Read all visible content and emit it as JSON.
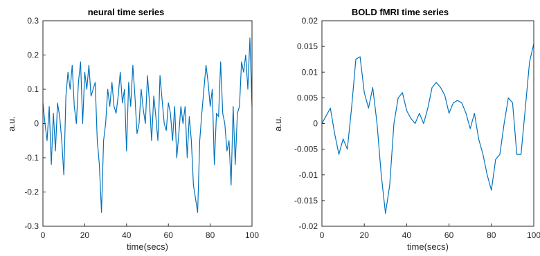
{
  "chart_data": [
    {
      "type": "line",
      "title": "neural time series",
      "xlabel": "time(secs)",
      "ylabel": "a.u.",
      "xlim": [
        0,
        100
      ],
      "ylim": [
        -0.3,
        0.3
      ],
      "xticks": [
        0,
        20,
        40,
        60,
        80,
        100
      ],
      "xtick_labels": [
        "0",
        "20",
        "40",
        "60",
        "80",
        "100"
      ],
      "yticks": [
        -0.3,
        -0.2,
        -0.1,
        0,
        0.1,
        0.2,
        0.3
      ],
      "ytick_labels": [
        "-0.3",
        "-0.2",
        "-0.1",
        "0",
        "0.1",
        "0.2",
        "0.3"
      ],
      "grid": false,
      "color": "#0072BD",
      "series": [
        {
          "x": [
            0,
            1,
            2,
            3,
            4,
            5,
            6,
            7,
            8,
            9,
            10,
            11,
            12,
            13,
            14,
            15,
            16,
            17,
            18,
            19,
            20,
            21,
            22,
            23,
            24,
            25,
            26,
            27,
            28,
            29,
            30,
            31,
            32,
            33,
            34,
            35,
            36,
            37,
            38,
            39,
            40,
            41,
            42,
            43,
            44,
            45,
            46,
            47,
            48,
            49,
            50,
            51,
            52,
            53,
            54,
            55,
            56,
            57,
            58,
            59,
            60,
            61,
            62,
            63,
            64,
            65,
            66,
            67,
            68,
            69,
            70,
            71,
            72,
            73,
            74,
            75,
            76,
            77,
            78,
            79,
            80,
            81,
            82,
            83,
            84,
            85,
            86,
            87,
            88,
            89,
            90,
            91,
            92,
            93,
            94,
            95,
            96,
            97,
            98,
            99,
            100
          ],
          "values": [
            0.06,
            0.0,
            -0.05,
            0.05,
            -0.12,
            0.03,
            -0.08,
            0.06,
            0.02,
            -0.05,
            -0.15,
            0.08,
            0.15,
            0.1,
            0.17,
            0.05,
            0.0,
            0.12,
            0.18,
            0.0,
            0.15,
            0.1,
            0.17,
            0.08,
            0.1,
            0.12,
            -0.05,
            -0.12,
            -0.26,
            -0.05,
            0.0,
            0.1,
            0.05,
            0.12,
            0.05,
            0.03,
            0.08,
            0.15,
            0.06,
            0.1,
            -0.08,
            0.12,
            0.05,
            0.17,
            0.08,
            -0.03,
            0.0,
            0.1,
            0.04,
            0.0,
            0.14,
            0.06,
            -0.05,
            0.08,
            0.02,
            -0.05,
            0.14,
            0.07,
            0.0,
            -0.02,
            0.06,
            0.03,
            -0.05,
            0.05,
            -0.1,
            -0.03,
            0.05,
            0.0,
            0.05,
            -0.1,
            0.02,
            -0.05,
            -0.18,
            -0.22,
            -0.26,
            -0.05,
            0.03,
            0.1,
            0.17,
            0.12,
            0.05,
            0.1,
            -0.12,
            0.03,
            0.02,
            0.18,
            0.03,
            0.0,
            -0.08,
            -0.05,
            -0.18,
            0.05,
            -0.12,
            0.03,
            0.05,
            0.18,
            0.15,
            0.2,
            0.1,
            0.25,
            0.05
          ]
        }
      ]
    },
    {
      "type": "line",
      "title": "BOLD fMRI time series",
      "xlabel": "time(secs)",
      "ylabel": "a.u.",
      "xlim": [
        0,
        100
      ],
      "ylim": [
        -0.02,
        0.02
      ],
      "xticks": [
        0,
        20,
        40,
        60,
        80,
        100
      ],
      "xtick_labels": [
        "0",
        "20",
        "40",
        "60",
        "80",
        "100"
      ],
      "yticks": [
        -0.02,
        -0.015,
        -0.01,
        -0.005,
        0,
        0.005,
        0.01,
        0.015,
        0.02
      ],
      "ytick_labels": [
        "-0.02",
        "-0.015",
        "-0.01",
        "-0.005",
        "0",
        "0.005",
        "0.01",
        "0.015",
        "0.02"
      ],
      "grid": false,
      "color": "#0072BD",
      "series": [
        {
          "x": [
            0,
            2,
            4,
            6,
            8,
            10,
            12,
            14,
            16,
            18,
            20,
            22,
            24,
            26,
            28,
            30,
            32,
            34,
            36,
            38,
            40,
            42,
            44,
            46,
            48,
            50,
            52,
            54,
            56,
            58,
            60,
            62,
            64,
            66,
            68,
            70,
            72,
            74,
            76,
            78,
            80,
            82,
            84,
            86,
            88,
            90,
            92,
            94,
            96,
            98,
            100
          ],
          "values": [
            0.0,
            0.0015,
            0.003,
            -0.002,
            -0.006,
            -0.003,
            -0.005,
            0.003,
            0.0125,
            0.013,
            0.006,
            0.003,
            0.007,
            0.0,
            -0.01,
            -0.0175,
            -0.012,
            0.0,
            0.005,
            0.006,
            0.0025,
            0.001,
            0.0,
            0.002,
            0.0,
            0.003,
            0.007,
            0.008,
            0.007,
            0.0055,
            0.002,
            0.004,
            0.0045,
            0.004,
            0.002,
            -0.001,
            0.002,
            -0.003,
            -0.006,
            -0.01,
            -0.013,
            -0.007,
            -0.006,
            0.0,
            0.005,
            0.004,
            -0.006,
            -0.006,
            0.003,
            0.012,
            0.0155
          ]
        }
      ]
    }
  ]
}
